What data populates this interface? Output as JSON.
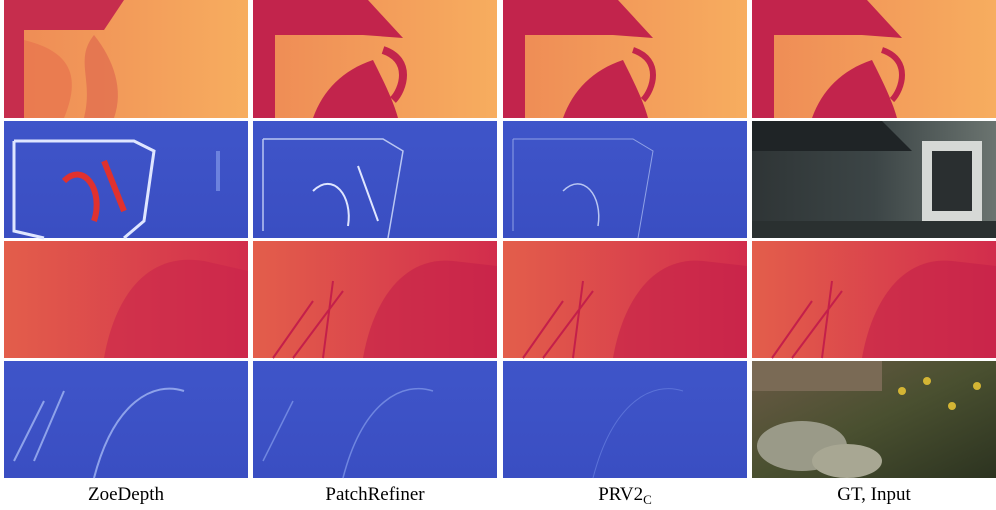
{
  "columns": [
    {
      "label": "ZoeDepth"
    },
    {
      "label": "PatchRefiner"
    },
    {
      "label": "PRV2",
      "subscript": "C"
    },
    {
      "label": "GT, Input"
    }
  ]
}
